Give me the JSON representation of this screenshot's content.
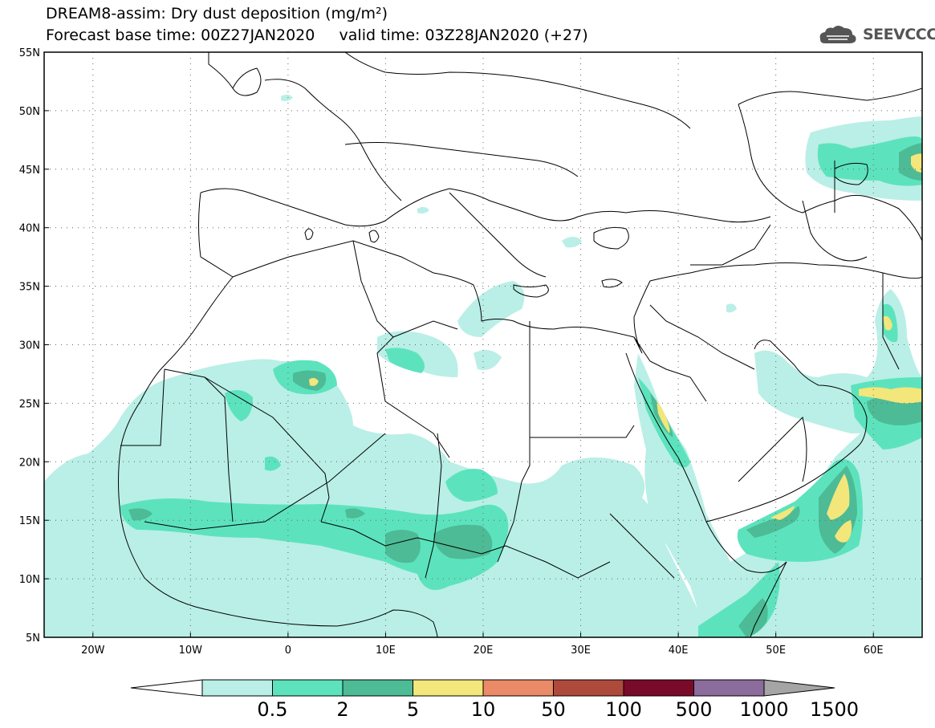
{
  "header": {
    "title": "DREAM8-assim: Dry dust deposition (mg/m²)",
    "forecast_line": "Forecast base time: 00Z27JAN2020     valid time: 03Z28JAN2020 (+27)"
  },
  "logo": {
    "text": "SEEVCCC",
    "icon": "cloud-logo-icon"
  },
  "map": {
    "lon_range": [
      -25,
      65
    ],
    "lat_range": [
      5,
      55
    ],
    "lat_ticks": [
      {
        "value": 55,
        "label": "55N"
      },
      {
        "value": 50,
        "label": "50N"
      },
      {
        "value": 45,
        "label": "45N"
      },
      {
        "value": 40,
        "label": "40N"
      },
      {
        "value": 35,
        "label": "35N"
      },
      {
        "value": 30,
        "label": "30N"
      },
      {
        "value": 25,
        "label": "25N"
      },
      {
        "value": 20,
        "label": "20N"
      },
      {
        "value": 15,
        "label": "15N"
      },
      {
        "value": 10,
        "label": "10N"
      },
      {
        "value": 5,
        "label": "5N"
      }
    ],
    "lon_ticks": [
      {
        "value": -20,
        "label": "20W"
      },
      {
        "value": -10,
        "label": "10W"
      },
      {
        "value": 0,
        "label": "0"
      },
      {
        "value": 10,
        "label": "10E"
      },
      {
        "value": 20,
        "label": "20E"
      },
      {
        "value": 30,
        "label": "30E"
      },
      {
        "value": 40,
        "label": "40E"
      },
      {
        "value": 50,
        "label": "50E"
      },
      {
        "value": 60,
        "label": "60E"
      }
    ]
  },
  "colorbar": {
    "levels": [
      "0.5",
      "2",
      "5",
      "10",
      "50",
      "100",
      "500",
      "1000",
      "1500"
    ],
    "colors": [
      "#ffffff",
      "#b9efe6",
      "#5ce3bd",
      "#4dbb95",
      "#f3e67a",
      "#ea8a66",
      "#ad4a3c",
      "#7a0a2a",
      "#8b6c9c",
      "#a5a5a5"
    ]
  }
}
